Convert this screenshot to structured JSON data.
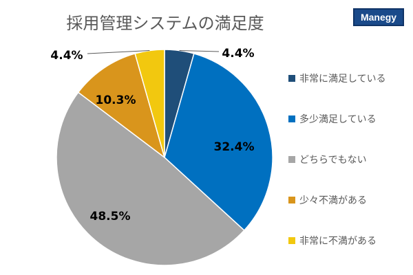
{
  "title": "採用管理システムの満足度",
  "logo_text": "Manegy",
  "chart_data": {
    "type": "pie",
    "title": "採用管理システムの満足度",
    "categories": [
      "非常に満足している",
      "多少満足している",
      "どちらでもない",
      "少々不満がある",
      "非常に不満がある"
    ],
    "values": [
      4.4,
      32.4,
      48.5,
      10.3,
      4.4
    ],
    "labels": [
      "4.4%",
      "32.4%",
      "48.5%",
      "10.3%",
      "4.4%"
    ],
    "colors": [
      "#1f4e79",
      "#0070c0",
      "#a6a6a6",
      "#d9951c",
      "#f2c80f"
    ],
    "legend_position": "right",
    "start_angle": "12 o'clock",
    "direction": "clockwise"
  }
}
